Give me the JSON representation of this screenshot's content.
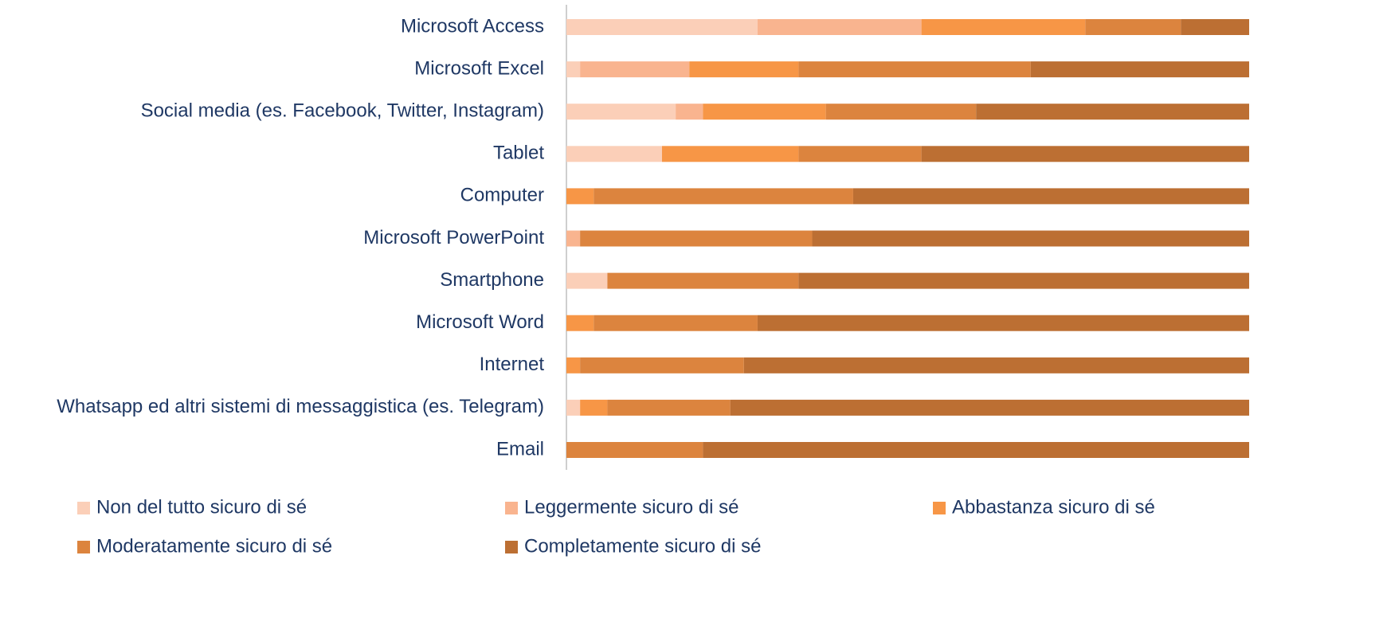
{
  "chart_data": {
    "type": "stacked_bar_horizontal",
    "categories": [
      "Microsoft Access",
      "Microsoft Excel",
      "Social media (es. Facebook, Twitter, Instagram)",
      "Tablet",
      "Computer",
      "Microsoft PowerPoint",
      "Smartphone",
      "Microsoft Word",
      "Internet",
      "Whatsapp ed altri sistemi di messaggistica (es. Telegram)",
      "Email"
    ],
    "series": [
      {
        "name": "Non del tutto sicuro di sé",
        "color": "#fbcfb8",
        "values": [
          28,
          2,
          16,
          14,
          0,
          0,
          6,
          0,
          0,
          2,
          0
        ]
      },
      {
        "name": "Leggermente sicuro di sé",
        "color": "#f9b48f",
        "values": [
          24,
          16,
          4,
          0,
          0,
          2,
          0,
          0,
          0,
          0,
          0
        ]
      },
      {
        "name": "Abbastanza sicuro di sé",
        "color": "#f79646",
        "values": [
          24,
          16,
          18,
          20,
          4,
          0,
          0,
          4,
          2,
          4,
          0
        ]
      },
      {
        "name": "Moderatamente sicuro di sé",
        "color": "#dc843e",
        "values": [
          14,
          34,
          22,
          18,
          38,
          34,
          28,
          24,
          24,
          18,
          20
        ]
      },
      {
        "name": "Completamente sicuro di sé",
        "color": "#bc6f33",
        "values": [
          10,
          32,
          40,
          48,
          58,
          64,
          66,
          72,
          74,
          76,
          80
        ]
      }
    ],
    "xlim": [
      0,
      100
    ]
  }
}
